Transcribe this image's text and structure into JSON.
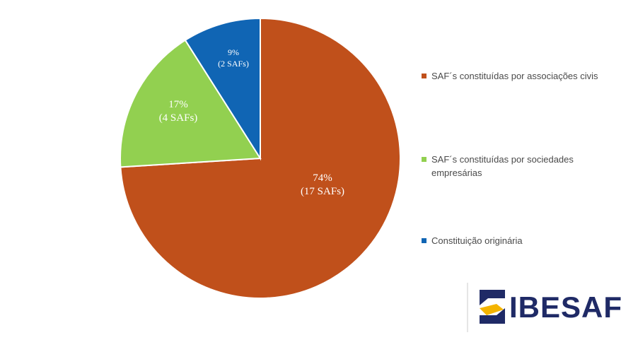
{
  "chart_data": {
    "type": "pie",
    "slices": [
      {
        "name": "SAF´s constituídas por associações civis",
        "value": 74,
        "percent_label": "74%",
        "count_label": "(17 SAFs)",
        "color": "#c0501b"
      },
      {
        "name": "SAF´s constituídas por sociedades empresárias",
        "value": 17,
        "percent_label": "17%",
        "count_label": "(4 SAFs)",
        "color": "#92d050"
      },
      {
        "name": "Constituição originária",
        "value": 9,
        "percent_label": "9%",
        "count_label": "(2 SAFs)",
        "color": "#1065b4"
      }
    ],
    "legend_position": "right"
  },
  "logo": {
    "text": "IBESAF",
    "color": "#1f2a66",
    "accent_color": "#f4b400"
  }
}
